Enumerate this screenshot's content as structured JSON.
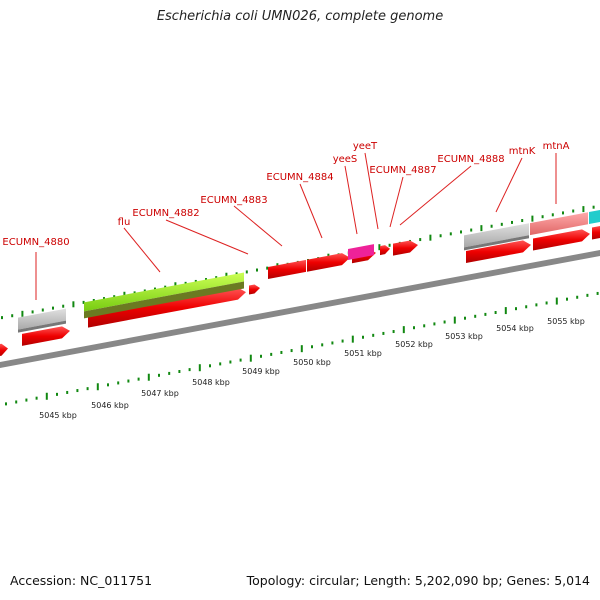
{
  "title": "Escherichia coli UMN026, complete genome",
  "footer": {
    "accession": "Accession: NC_011751",
    "summary": "Topology: circular; Length: 5,202,090 bp; Genes: 5,014"
  },
  "colors": {
    "cds_red": "#ee0000",
    "backbone_gray": "#888888",
    "tick_green": "#118811",
    "rna_gray": "#c0c0c0",
    "green_bar": "#88dd22",
    "olive_bar": "#6b7a22",
    "pink": "#ee2299",
    "salmon": "#f08080",
    "cyan": "#22cccc",
    "label_red": "#cc0000"
  },
  "gene_labels": [
    {
      "name": "ECUMN_4880"
    },
    {
      "name": "flu"
    },
    {
      "name": "ECUMN_4882"
    },
    {
      "name": "ECUMN_4883"
    },
    {
      "name": "ECUMN_4884"
    },
    {
      "name": "yeeS"
    },
    {
      "name": "yeeT"
    },
    {
      "name": "ECUMN_4887"
    },
    {
      "name": "ECUMN_4888"
    },
    {
      "name": "mtnK"
    },
    {
      "name": "mtnA"
    }
  ],
  "kbp_labels": [
    "5045 kbp",
    "5046 kbp",
    "5047 kbp",
    "5048 kbp",
    "5049 kbp",
    "5050 kbp",
    "5051 kbp",
    "5052 kbp",
    "5053 kbp",
    "5054 kbp",
    "5055 kbp"
  ]
}
